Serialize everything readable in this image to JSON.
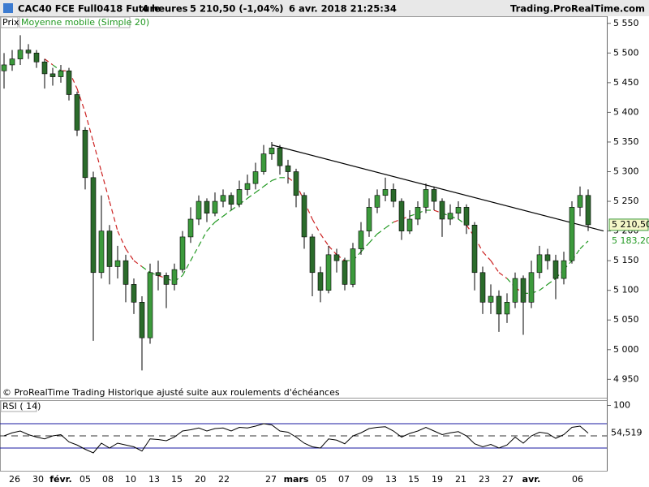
{
  "header": {
    "title": "CAC40 FCE Full0418 Future",
    "period": "4 heures",
    "quote": "5 210,50 (-1,04%)",
    "datetime": "6 avr. 2018 21:25:34",
    "site": "Trading.ProRealTime.com"
  },
  "footer": "© ProRealTime Trading  Historique ajusté suite aux roulements d'échéances",
  "chart_data": [
    {
      "type": "candlestick",
      "legend": [
        "Prix",
        "Moyenne mobile (Simple 20)"
      ],
      "x_labels": [
        "26",
        "30",
        "févr.",
        "05",
        "08",
        "10",
        "13",
        "15",
        "20",
        "22",
        "27",
        "mars",
        "05",
        "07",
        "09",
        "13",
        "15",
        "19",
        "21",
        "23",
        "27",
        "avr.",
        "06"
      ],
      "up_color": "#3c9a3c",
      "down_color": "#2b6b2b",
      "ma_color_above": "#cc2222",
      "ma_color_below": "#229922",
      "open": [
        5470,
        5480,
        5490,
        5505,
        5500,
        5485,
        5465,
        5460,
        5470,
        5430,
        5370,
        5290,
        5130,
        5200,
        5140,
        5150,
        5110,
        5080,
        5020,
        5130,
        5125,
        5110,
        5135,
        5190,
        5220,
        5250,
        5230,
        5250,
        5260,
        5245,
        5270,
        5280,
        5300,
        5330,
        5340,
        5310,
        5300,
        5260,
        5190,
        5130,
        5100,
        5160,
        5150,
        5110,
        5170,
        5200,
        5240,
        5260,
        5270,
        5250,
        5200,
        5220,
        5240,
        5270,
        5250,
        5220,
        5230,
        5240,
        5210,
        5130,
        5080,
        5090,
        5060,
        5080,
        5120,
        5080,
        5130,
        5160,
        5150,
        5120,
        5150,
        5240,
        5260
      ],
      "high": [
        5500,
        5505,
        5530,
        5515,
        5505,
        5490,
        5475,
        5480,
        5475,
        5435,
        5375,
        5300,
        5260,
        5210,
        5175,
        5160,
        5120,
        5090,
        5145,
        5150,
        5130,
        5145,
        5200,
        5240,
        5260,
        5255,
        5265,
        5270,
        5265,
        5285,
        5295,
        5315,
        5345,
        5350,
        5345,
        5320,
        5305,
        5265,
        5195,
        5140,
        5175,
        5170,
        5155,
        5180,
        5215,
        5255,
        5270,
        5290,
        5280,
        5255,
        5235,
        5250,
        5280,
        5275,
        5255,
        5245,
        5250,
        5245,
        5215,
        5140,
        5110,
        5100,
        5095,
        5130,
        5125,
        5150,
        5175,
        5170,
        5160,
        5165,
        5250,
        5275,
        5270
      ],
      "low": [
        5440,
        5470,
        5480,
        5490,
        5475,
        5440,
        5445,
        5450,
        5420,
        5360,
        5270,
        5015,
        5120,
        5110,
        5120,
        5080,
        5060,
        4965,
        5010,
        5100,
        5070,
        5100,
        5130,
        5180,
        5210,
        5215,
        5225,
        5240,
        5235,
        5240,
        5260,
        5270,
        5295,
        5320,
        5295,
        5280,
        5240,
        5170,
        5090,
        5080,
        5095,
        5130,
        5100,
        5105,
        5160,
        5190,
        5230,
        5250,
        5240,
        5185,
        5195,
        5210,
        5230,
        5235,
        5190,
        5210,
        5220,
        5195,
        5100,
        5060,
        5060,
        5030,
        5045,
        5070,
        5025,
        5070,
        5120,
        5135,
        5085,
        5110,
        5145,
        5225,
        5200
      ],
      "close": [
        5480,
        5490,
        5505,
        5500,
        5485,
        5465,
        5460,
        5470,
        5430,
        5370,
        5290,
        5130,
        5200,
        5140,
        5150,
        5110,
        5080,
        5020,
        5130,
        5125,
        5110,
        5135,
        5190,
        5220,
        5250,
        5230,
        5250,
        5260,
        5245,
        5270,
        5280,
        5300,
        5330,
        5340,
        5310,
        5300,
        5260,
        5190,
        5130,
        5100,
        5160,
        5150,
        5110,
        5170,
        5200,
        5240,
        5260,
        5270,
        5250,
        5200,
        5220,
        5240,
        5270,
        5250,
        5220,
        5230,
        5240,
        5210,
        5130,
        5080,
        5090,
        5060,
        5080,
        5120,
        5080,
        5130,
        5160,
        5150,
        5120,
        5150,
        5240,
        5260,
        5210.5
      ],
      "ma": [
        null,
        null,
        null,
        null,
        null,
        5490,
        5480,
        5470,
        5470,
        5440,
        5400,
        5350,
        5300,
        5250,
        5200,
        5170,
        5150,
        5140,
        5130,
        5125,
        5120,
        5115,
        5125,
        5150,
        5175,
        5200,
        5215,
        5225,
        5235,
        5245,
        5255,
        5265,
        5275,
        5285,
        5290,
        5290,
        5280,
        5250,
        5220,
        5195,
        5175,
        5160,
        5150,
        5150,
        5165,
        5180,
        5195,
        5205,
        5215,
        5220,
        5225,
        5230,
        5235,
        5235,
        5230,
        5225,
        5220,
        5210,
        5190,
        5165,
        5150,
        5130,
        5120,
        5105,
        5095,
        5095,
        5100,
        5110,
        5120,
        5135,
        5150,
        5170,
        5183.2
      ],
      "trendline": [
        5345,
        5200
      ],
      "value_labels": {
        "close": "5 210,50",
        "ma": "5 183,20"
      },
      "ylim": [
        4919,
        5562
      ],
      "yticks": [
        {
          "value": 4950,
          "label": "4 950"
        },
        {
          "value": 5000,
          "label": "5 000"
        },
        {
          "value": 5050,
          "label": "5 050"
        },
        {
          "value": 5100,
          "label": "5 100"
        },
        {
          "value": 5150,
          "label": "5 150"
        },
        {
          "value": 5200,
          "label": "5 200"
        },
        {
          "value": 5250,
          "label": "5 250"
        },
        {
          "value": 5300,
          "label": "5 300"
        },
        {
          "value": 5350,
          "label": "5 350"
        },
        {
          "value": 5400,
          "label": "5 400"
        },
        {
          "value": 5450,
          "label": "5 450"
        },
        {
          "value": 5500,
          "label": "5 500"
        },
        {
          "value": 5550,
          "label": "5 550"
        }
      ]
    },
    {
      "type": "line",
      "title": "RSI ( 14)",
      "color": "#000000",
      "band_color": "#1a1aa0",
      "values": [
        50,
        55,
        58,
        52,
        48,
        45,
        50,
        52,
        40,
        35,
        28,
        22,
        38,
        30,
        38,
        35,
        32,
        25,
        45,
        44,
        42,
        48,
        58,
        60,
        63,
        58,
        62,
        63,
        58,
        64,
        63,
        66,
        70,
        68,
        58,
        56,
        48,
        38,
        32,
        30,
        45,
        43,
        37,
        50,
        55,
        62,
        64,
        65,
        58,
        48,
        54,
        58,
        64,
        58,
        52,
        55,
        57,
        50,
        37,
        32,
        36,
        30,
        35,
        48,
        38,
        50,
        56,
        54,
        46,
        52,
        64,
        66,
        54.519
      ],
      "value_label": "54,519",
      "levels": [
        30,
        50,
        70
      ],
      "ylim": [
        0,
        100
      ],
      "yticks": [
        100
      ]
    }
  ]
}
